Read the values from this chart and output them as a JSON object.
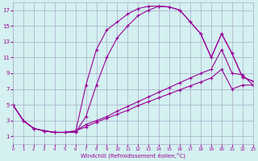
{
  "xlabel": "Windchill (Refroidissement éolien,°C)",
  "bg_color": "#d4f0f0",
  "grid_color": "#aaaacc",
  "line_color": "#990099",
  "xlim": [
    0,
    23
  ],
  "ylim": [
    0,
    18
  ],
  "xticks": [
    0,
    1,
    2,
    3,
    4,
    5,
    6,
    7,
    8,
    9,
    10,
    11,
    12,
    13,
    14,
    15,
    16,
    17,
    18,
    19,
    20,
    21,
    22,
    23
  ],
  "yticks": [
    1,
    3,
    5,
    7,
    9,
    11,
    13,
    15,
    17
  ],
  "s1x": [
    0,
    1,
    2,
    3,
    4,
    5,
    6,
    7,
    8,
    9,
    10,
    11,
    12,
    13,
    14,
    15,
    16,
    17,
    18,
    19,
    20,
    21,
    22,
    23
  ],
  "s1y": [
    5.0,
    3.0,
    2.0,
    1.7,
    1.5,
    1.5,
    1.5,
    7.5,
    12.0,
    14.5,
    15.5,
    16.5,
    17.2,
    17.5,
    17.5,
    17.4,
    17.0,
    15.5,
    14.0,
    11.0,
    14.0,
    11.5,
    8.5,
    8.0
  ],
  "s2x": [
    0,
    1,
    2,
    3,
    4,
    5,
    6,
    7,
    8,
    9,
    10,
    11,
    12,
    13,
    14,
    15,
    16,
    17,
    18,
    19,
    20,
    21,
    22,
    23
  ],
  "s2y": [
    5.0,
    3.0,
    2.0,
    1.7,
    1.5,
    1.5,
    1.5,
    3.5,
    7.5,
    11.0,
    13.5,
    15.0,
    16.3,
    17.0,
    17.5,
    17.4,
    17.0,
    15.5,
    14.0,
    11.0,
    14.0,
    11.5,
    8.5,
    8.0
  ],
  "s3x": [
    0,
    1,
    2,
    3,
    4,
    5,
    6,
    7,
    8,
    9,
    10,
    11,
    12,
    13,
    14,
    15,
    16,
    17,
    18,
    19,
    20,
    21,
    22,
    23
  ],
  "s3y": [
    5.0,
    3.0,
    2.0,
    1.7,
    1.5,
    1.5,
    1.7,
    2.5,
    3.0,
    3.5,
    4.2,
    4.8,
    5.4,
    6.0,
    6.6,
    7.2,
    7.8,
    8.4,
    9.0,
    9.5,
    12.0,
    9.0,
    8.8,
    7.5
  ],
  "s4x": [
    0,
    1,
    2,
    3,
    4,
    5,
    6,
    7,
    8,
    9,
    10,
    11,
    12,
    13,
    14,
    15,
    16,
    17,
    18,
    19,
    20,
    21,
    22,
    23
  ],
  "s4y": [
    5.0,
    3.0,
    2.0,
    1.7,
    1.5,
    1.5,
    1.7,
    2.2,
    2.8,
    3.3,
    3.8,
    4.3,
    4.9,
    5.4,
    5.9,
    6.4,
    6.9,
    7.4,
    7.9,
    8.4,
    9.5,
    7.0,
    7.5,
    7.5
  ]
}
